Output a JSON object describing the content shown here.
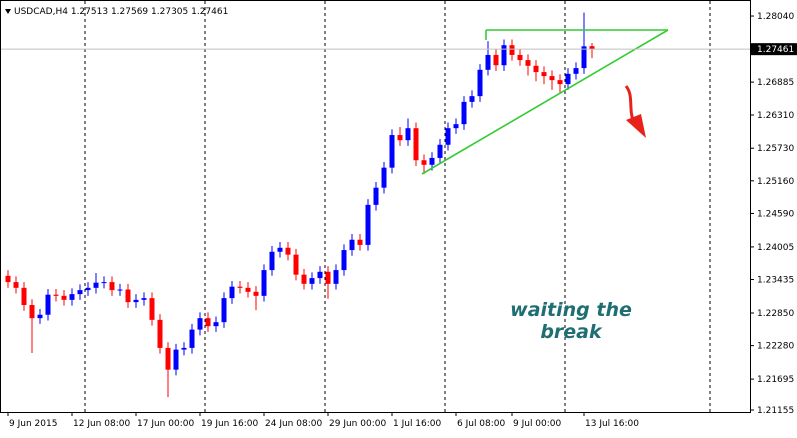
{
  "chart_data": {
    "type": "candlestick",
    "symbol": "USDCAD,H4",
    "annotation": [
      "waiting the",
      "break"
    ],
    "up_color": "#0000ff",
    "down_color": "#ff0000",
    "categories": [
      "9 Jun 2015",
      null,
      null,
      null,
      null,
      null,
      null,
      null,
      "12 Jun 08:00",
      null,
      null,
      null,
      null,
      null,
      null,
      null,
      "17 Jun 00:00",
      null,
      null,
      null,
      null,
      null,
      null,
      null,
      "19 Jun 16:00",
      null,
      null,
      null,
      null,
      null,
      null,
      null,
      "24 Jun 08:00",
      null,
      null,
      null,
      null,
      null,
      null,
      null,
      "29 Jun 00:00",
      null,
      null,
      null,
      null,
      null,
      null,
      null,
      "1 Jul 16:00",
      null,
      null,
      null,
      null,
      null,
      null,
      null,
      "6 Jul 08:00",
      null,
      null,
      null,
      null,
      null,
      null,
      "9 Jul 00:00",
      null,
      null,
      null,
      null,
      null,
      null,
      null,
      null,
      "13 Jul 16:00",
      null
    ],
    "open": [
      1.235,
      1.2339,
      1.2329,
      1.2299,
      1.2276,
      1.2282,
      1.2317,
      1.2315,
      1.2308,
      1.2318,
      1.2325,
      1.2329,
      1.2338,
      1.2339,
      1.2325,
      1.2326,
      1.2304,
      1.2308,
      1.2311,
      1.2273,
      1.2224,
      1.2186,
      1.2221,
      1.2224,
      1.2256,
      1.2276,
      1.2262,
      1.2269,
      1.2311,
      1.2331,
      1.2329,
      1.2322,
      1.2315,
      1.236,
      1.2392,
      1.2399,
      1.2387,
      1.2352,
      1.2336,
      1.2346,
      1.2357,
      1.2336,
      1.236,
      1.2395,
      1.2413,
      1.2404,
      1.2474,
      1.2504,
      1.2539,
      1.2596,
      1.2587,
      1.2608,
      1.2552,
      1.2544,
      1.2556,
      1.2579,
      1.2608,
      1.2615,
      1.2654,
      1.2664,
      1.271,
      1.2736,
      1.2718,
      1.2753,
      1.2736,
      1.2727,
      1.2717,
      1.2706,
      1.2699,
      1.2692,
      1.2685,
      1.2703,
      1.2713,
      1.27513
    ],
    "high": [
      1.236,
      1.2349,
      1.2339,
      1.2309,
      1.2292,
      1.2327,
      1.2327,
      1.2325,
      1.2328,
      1.2335,
      1.2339,
      1.2355,
      1.2349,
      1.2349,
      1.2336,
      1.2336,
      1.2318,
      1.2321,
      1.2321,
      1.2283,
      1.2234,
      1.2231,
      1.2234,
      1.2266,
      1.2286,
      1.2286,
      1.2279,
      1.2321,
      1.2341,
      1.2341,
      1.2339,
      1.2332,
      1.237,
      1.2402,
      1.2409,
      1.2409,
      1.2397,
      1.2362,
      1.2356,
      1.2367,
      1.2367,
      1.237,
      1.2405,
      1.2423,
      1.2423,
      1.2484,
      1.2514,
      1.2549,
      1.2606,
      1.261,
      1.2625,
      1.2618,
      1.2562,
      1.2566,
      1.2589,
      1.2618,
      1.2625,
      1.2664,
      1.2674,
      1.272,
      1.276,
      1.2746,
      1.2763,
      1.2763,
      1.2746,
      1.2737,
      1.2727,
      1.2716,
      1.2709,
      1.2702,
      1.2713,
      1.2723,
      1.281,
      1.27569
    ],
    "low": [
      1.2329,
      1.2319,
      1.2289,
      1.2215,
      1.2266,
      1.2272,
      1.2305,
      1.2298,
      1.2298,
      1.2308,
      1.2315,
      1.2319,
      1.2328,
      1.2315,
      1.2315,
      1.2294,
      1.2294,
      1.2298,
      1.2263,
      1.2214,
      1.2138,
      1.2176,
      1.2211,
      1.2214,
      1.2246,
      1.2252,
      1.2252,
      1.2259,
      1.2301,
      1.2319,
      1.2312,
      1.229,
      1.2305,
      1.235,
      1.2382,
      1.2377,
      1.2342,
      1.2326,
      1.2326,
      1.2336,
      1.231,
      1.2326,
      1.235,
      1.2385,
      1.2394,
      1.2394,
      1.2464,
      1.2494,
      1.2529,
      1.2577,
      1.2577,
      1.2542,
      1.2528,
      1.2534,
      1.2546,
      1.2569,
      1.2598,
      1.2605,
      1.2644,
      1.2654,
      1.27,
      1.2708,
      1.2708,
      1.2726,
      1.2717,
      1.27,
      1.269,
      1.2685,
      1.2675,
      1.267,
      1.2675,
      1.2693,
      1.2703,
      1.27305
    ],
    "close": [
      1.2339,
      1.2329,
      1.2299,
      1.2276,
      1.2282,
      1.2317,
      1.2315,
      1.2308,
      1.2318,
      1.2325,
      1.2329,
      1.2338,
      1.2339,
      1.2325,
      1.2326,
      1.2304,
      1.2308,
      1.2311,
      1.2273,
      1.2224,
      1.2186,
      1.2221,
      1.2224,
      1.2256,
      1.2276,
      1.2262,
      1.2269,
      1.2311,
      1.2331,
      1.2329,
      1.2322,
      1.2315,
      1.236,
      1.2392,
      1.2399,
      1.2387,
      1.2352,
      1.2336,
      1.2346,
      1.2357,
      1.2336,
      1.236,
      1.2395,
      1.2413,
      1.2404,
      1.2474,
      1.2504,
      1.2539,
      1.2596,
      1.2587,
      1.2608,
      1.2552,
      1.2544,
      1.2556,
      1.2579,
      1.2608,
      1.2615,
      1.2654,
      1.2664,
      1.271,
      1.2736,
      1.2718,
      1.2753,
      1.2736,
      1.2727,
      1.2717,
      1.2706,
      1.2699,
      1.2692,
      1.2685,
      1.2703,
      1.2713,
      1.2751,
      1.27461
    ],
    "ylim": [
      1.2112,
      1.2832
    ],
    "yticks": [
      {
        "value": 1.2804,
        "label": "1.28040"
      },
      1.26885,
      {
        "value": 1.2631,
        "label": "1.26310"
      },
      {
        "value": 1.2573,
        "label": "1.25730"
      },
      {
        "value": 1.2516,
        "label": "1.25160"
      },
      {
        "value": 1.2459,
        "label": "1.24590"
      },
      1.24005,
      1.23435,
      {
        "value": 1.2285,
        "label": "1.22850"
      },
      {
        "value": 1.2228,
        "label": "1.22280"
      },
      1.21695,
      1.21155
    ]
  }
}
